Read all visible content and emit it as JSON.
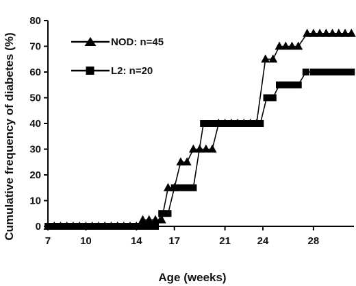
{
  "chart_data": {
    "type": "line",
    "title": "",
    "xlabel": "Age (weeks)",
    "ylabel": "Cumulative frequency of diabetes (%)",
    "xlim": [
      7,
      31.2
    ],
    "ylim": [
      0,
      80
    ],
    "x_ticks": [
      "7",
      "10",
      "14",
      "17",
      "21",
      "24",
      "28"
    ],
    "x_tick_values": [
      7,
      10,
      14,
      17,
      21,
      24,
      28
    ],
    "y_ticks": [
      "0",
      "10",
      "20",
      "30",
      "40",
      "50",
      "60",
      "70",
      "80"
    ],
    "y_tick_values": [
      0,
      10,
      20,
      30,
      40,
      50,
      60,
      70,
      80
    ],
    "grid": false,
    "legend_position": "top-left",
    "series": [
      {
        "name": "NOD: n=45",
        "marker": "triangle",
        "color": "#000000",
        "points": [
          [
            7,
            0
          ],
          [
            7.5,
            0
          ],
          [
            8,
            0
          ],
          [
            8.5,
            0
          ],
          [
            9,
            0
          ],
          [
            9.5,
            0
          ],
          [
            10,
            0
          ],
          [
            10.5,
            0
          ],
          [
            11,
            0
          ],
          [
            11.5,
            0
          ],
          [
            12,
            0
          ],
          [
            12.5,
            0
          ],
          [
            13,
            0
          ],
          [
            13.5,
            0
          ],
          [
            14,
            0
          ],
          [
            14.5,
            2.5
          ],
          [
            15,
            2.5
          ],
          [
            15.5,
            2.5
          ],
          [
            16,
            2.5
          ],
          [
            16.5,
            15
          ],
          [
            17,
            15
          ],
          [
            17.5,
            25
          ],
          [
            18,
            25
          ],
          [
            18.5,
            30
          ],
          [
            19,
            30
          ],
          [
            19.5,
            30
          ],
          [
            20,
            30
          ],
          [
            20.5,
            40
          ],
          [
            21,
            40
          ],
          [
            21.5,
            40
          ],
          [
            22,
            40
          ],
          [
            22.5,
            40
          ],
          [
            23,
            40
          ],
          [
            23.5,
            40
          ],
          [
            24.2,
            65
          ],
          [
            24.8,
            65
          ],
          [
            25.3,
            70
          ],
          [
            25.8,
            70
          ],
          [
            26.3,
            70
          ],
          [
            26.8,
            70
          ],
          [
            27.5,
            75
          ],
          [
            28,
            75
          ],
          [
            28.5,
            75
          ],
          [
            29,
            75
          ],
          [
            29.5,
            75
          ],
          [
            30,
            75
          ],
          [
            30.5,
            75
          ],
          [
            31,
            75
          ]
        ]
      },
      {
        "name": "L2: n=20",
        "marker": "square",
        "color": "#000000",
        "points": [
          [
            7,
            0
          ],
          [
            7.5,
            0
          ],
          [
            8,
            0
          ],
          [
            8.5,
            0
          ],
          [
            9,
            0
          ],
          [
            9.5,
            0
          ],
          [
            10,
            0
          ],
          [
            10.5,
            0
          ],
          [
            11,
            0
          ],
          [
            11.5,
            0
          ],
          [
            12,
            0
          ],
          [
            12.5,
            0
          ],
          [
            13,
            0
          ],
          [
            13.5,
            0
          ],
          [
            14,
            0
          ],
          [
            14.5,
            0
          ],
          [
            15,
            0
          ],
          [
            15.5,
            0
          ],
          [
            16,
            5
          ],
          [
            16.5,
            5
          ],
          [
            17,
            15
          ],
          [
            17.5,
            15
          ],
          [
            18,
            15
          ],
          [
            18.5,
            15
          ],
          [
            19.3,
            40
          ],
          [
            19.8,
            40
          ],
          [
            20.3,
            40
          ],
          [
            20.8,
            40
          ],
          [
            21.3,
            40
          ],
          [
            21.8,
            40
          ],
          [
            22.3,
            40
          ],
          [
            22.8,
            40
          ],
          [
            23.3,
            40
          ],
          [
            23.8,
            40
          ],
          [
            24.3,
            50
          ],
          [
            24.8,
            50
          ],
          [
            25.3,
            55
          ],
          [
            25.8,
            55
          ],
          [
            26.3,
            55
          ],
          [
            26.8,
            55
          ],
          [
            27.4,
            60
          ],
          [
            28,
            60
          ],
          [
            28.5,
            60
          ],
          [
            29,
            60
          ],
          [
            29.5,
            60
          ],
          [
            30,
            60
          ],
          [
            30.5,
            60
          ],
          [
            31,
            60
          ]
        ]
      }
    ]
  }
}
